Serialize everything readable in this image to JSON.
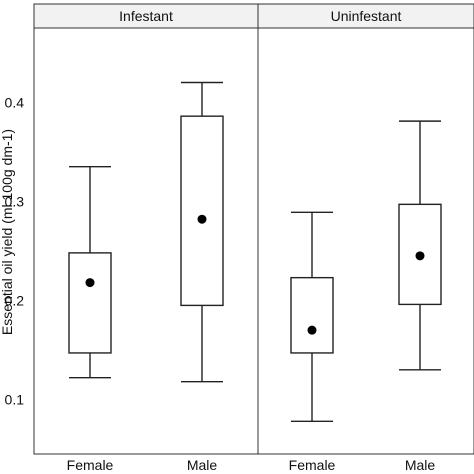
{
  "chart_data": {
    "type": "box",
    "ylabel": "Essential oil yield (ml 100g dm-1)",
    "yticks": [
      0.1,
      0.2,
      0.3,
      0.4
    ],
    "ylim": [
      0.045,
      0.475
    ],
    "panels": [
      {
        "title": "Infestant",
        "categories": [
          "Female",
          "Male"
        ],
        "boxes": [
          {
            "category": "Female",
            "min": 0.122,
            "q1": 0.147,
            "mean": 0.218,
            "q3": 0.248,
            "max": 0.335
          },
          {
            "category": "Male",
            "min": 0.118,
            "q1": 0.195,
            "mean": 0.282,
            "q3": 0.386,
            "max": 0.42
          }
        ]
      },
      {
        "title": "Uninfestant",
        "categories": [
          "Female",
          "Male"
        ],
        "boxes": [
          {
            "category": "Female",
            "min": 0.078,
            "q1": 0.147,
            "mean": 0.17,
            "q3": 0.223,
            "max": 0.289
          },
          {
            "category": "Male",
            "min": 0.13,
            "q1": 0.196,
            "mean": 0.245,
            "q3": 0.297,
            "max": 0.381
          }
        ]
      }
    ]
  },
  "colors": {
    "panel_border": "#333333",
    "strip_fill": "#f2f2f2",
    "box_fill": "#ffffff",
    "box_stroke": "#222222",
    "mean_dot": "#000000"
  }
}
